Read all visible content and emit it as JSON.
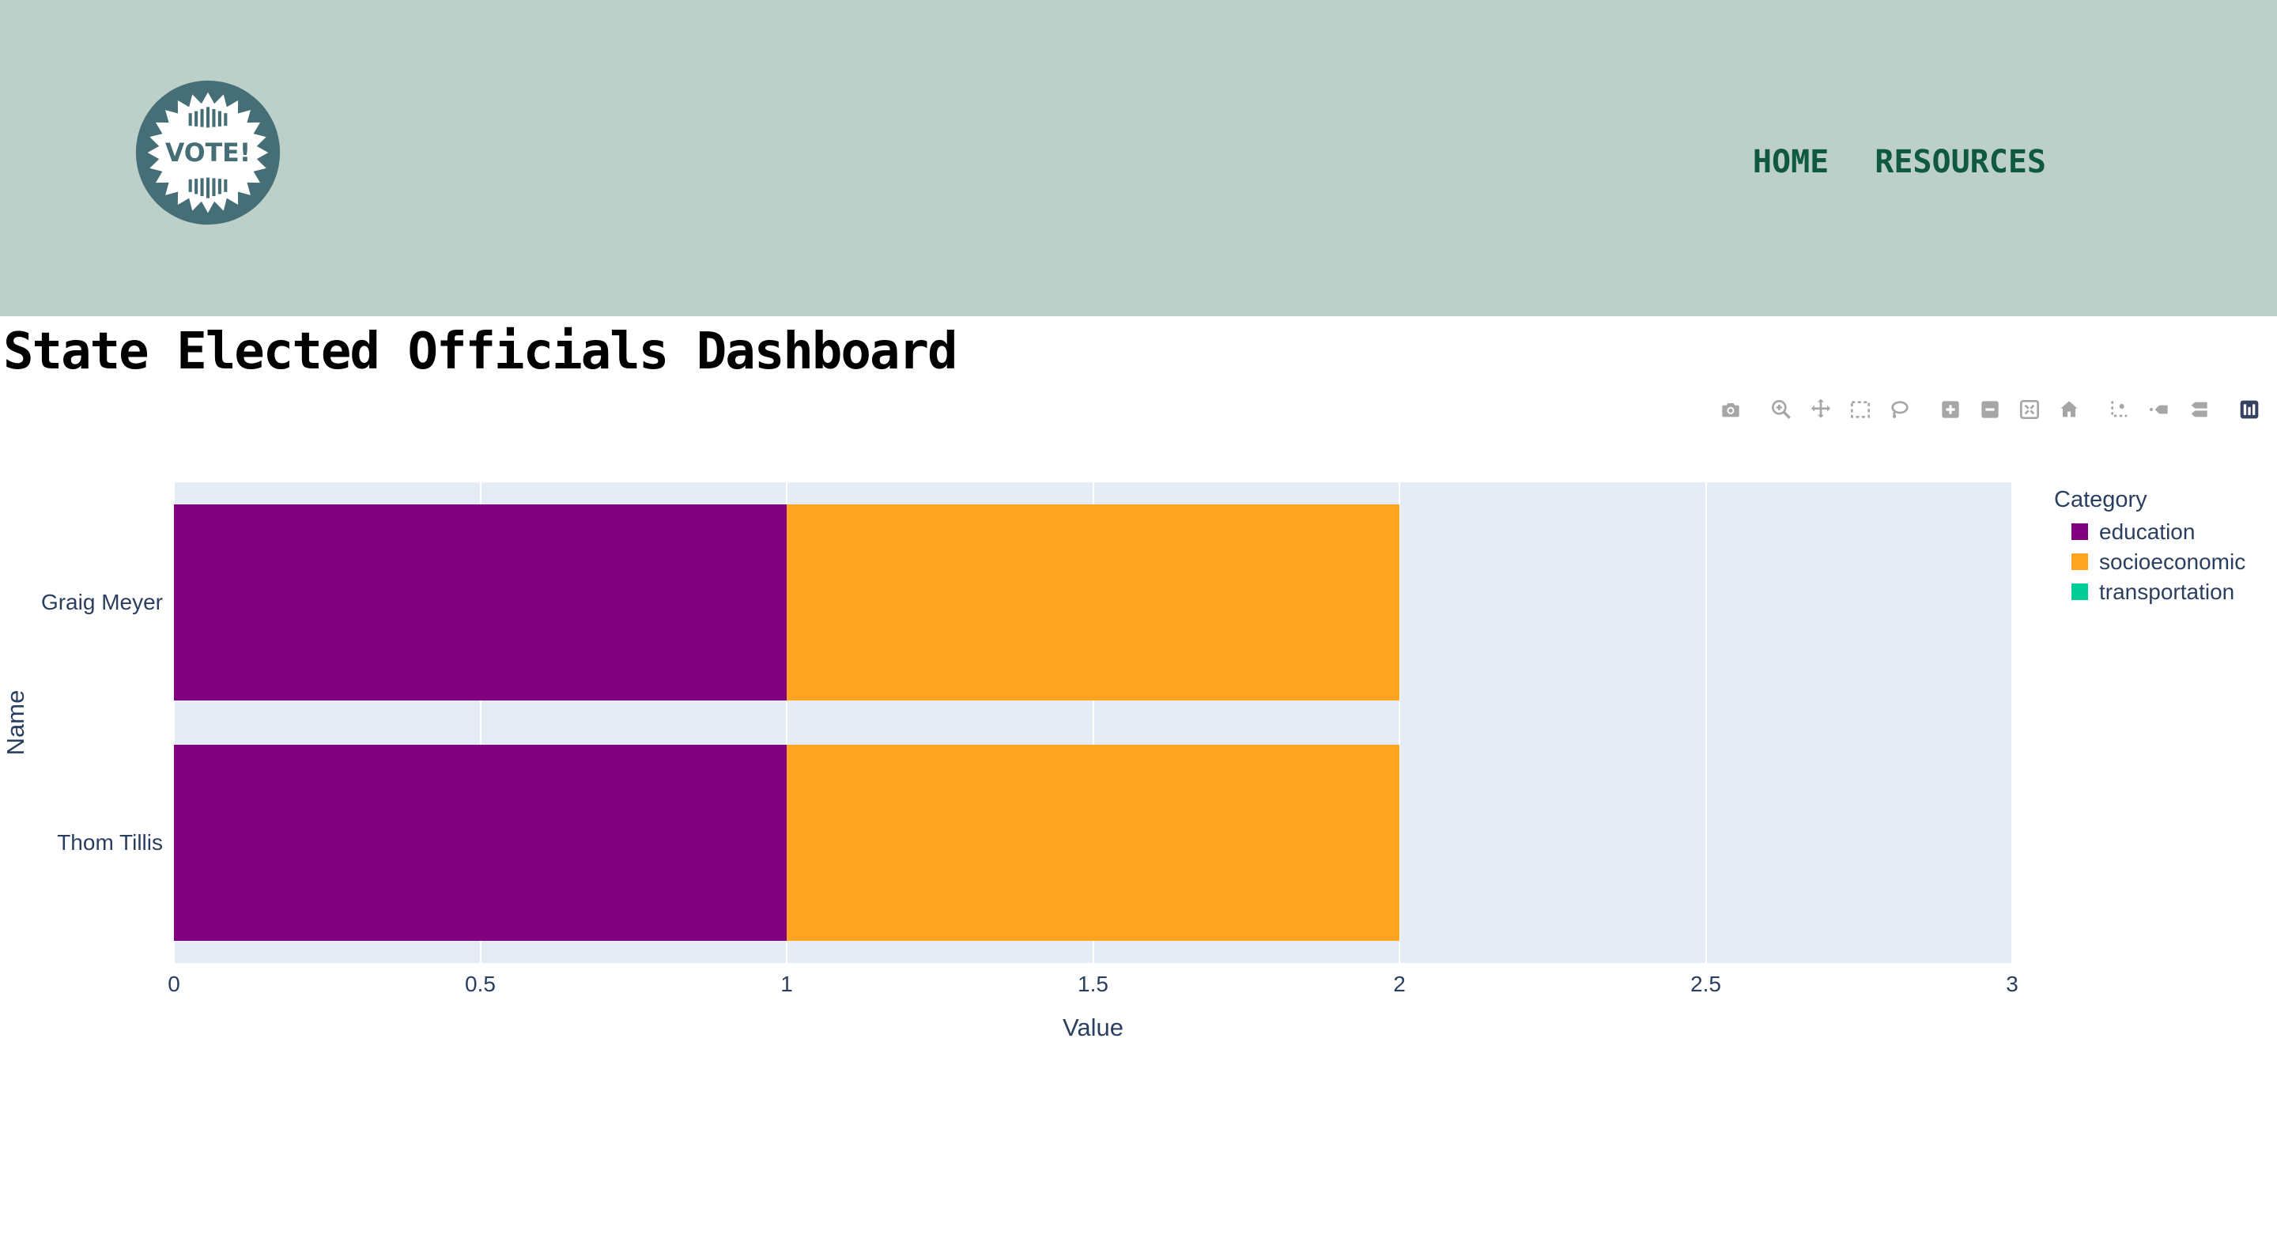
{
  "header": {
    "logo": {
      "text": "VOTE!"
    },
    "nav": {
      "items": [
        {
          "label": "HOME"
        },
        {
          "label": "RESOURCES"
        }
      ]
    }
  },
  "page": {
    "title": "State Elected Officials Dashboard"
  },
  "modebar": {
    "icons": [
      "camera",
      "zoom",
      "pan",
      "box-select",
      "lasso-select",
      "zoom-in",
      "zoom-out",
      "autoscale",
      "reset-axes",
      "toggle-spikelines",
      "hover-closest",
      "hover-compare",
      "plotly-logo"
    ]
  },
  "chart_data": {
    "type": "bar",
    "orientation": "horizontal",
    "barmode": "stack",
    "categories": [
      "Graig Meyer",
      "Thom Tillis"
    ],
    "series": [
      {
        "name": "education",
        "color": "#800080",
        "values": [
          1,
          1
        ]
      },
      {
        "name": "socioeconomic",
        "color": "#FFA421",
        "values": [
          1,
          1
        ]
      },
      {
        "name": "transportation",
        "color": "#00CC96",
        "values": [
          0,
          0
        ]
      }
    ],
    "xlabel": "Value",
    "ylabel": "Name",
    "xlim": [
      0,
      3
    ],
    "xticks": [
      0,
      0.5,
      1,
      1.5,
      2,
      2.5,
      3
    ],
    "xtick_labels": [
      "0",
      "0.5",
      "1",
      "1.5",
      "2",
      "2.5",
      "3"
    ],
    "legend_title": "Category",
    "legend_position": "right",
    "grid": true,
    "plot_bgcolor": "#E5ECF6",
    "gridcolor": "#FFFFFF",
    "font_color": "#2A3F5F"
  },
  "colors": {
    "header_bg": "#BCCFC9",
    "badge": "#456E77",
    "nav_link": "#0F5A3E",
    "modebar_icon": "#A6A6A6",
    "plotly_logo": "#36425F"
  }
}
